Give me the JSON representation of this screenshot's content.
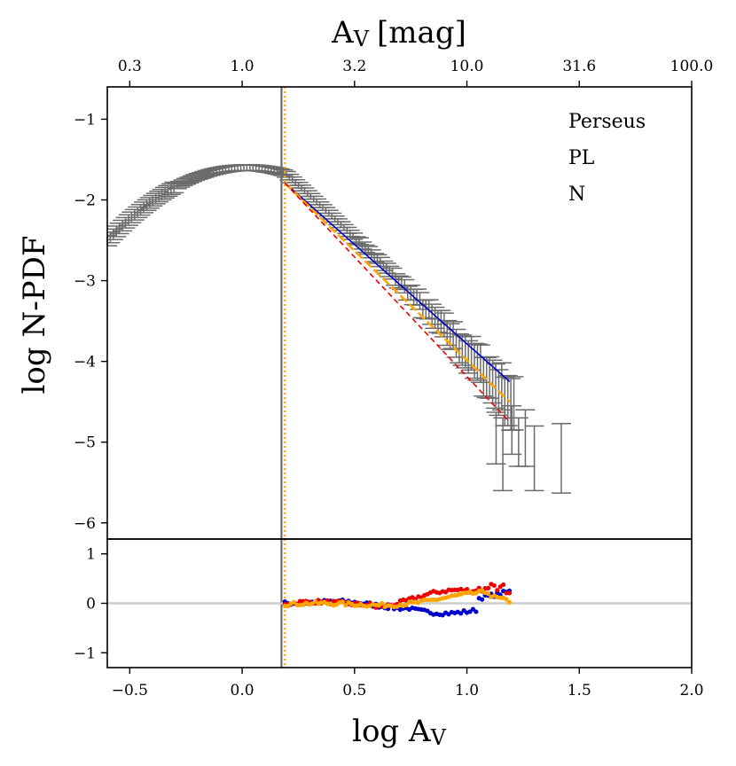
{
  "chart_data": {
    "type": "scatter",
    "title": "",
    "top_axis": {
      "label_main": "A",
      "label_sub": "V",
      "label_unit": "[mag]",
      "tick_labels": [
        "0.3",
        "1.0",
        "3.2",
        "10.0",
        "31.6",
        "100.0"
      ],
      "tick_positions_logAv": [
        -0.5,
        0.0,
        0.5,
        1.0,
        1.5,
        2.0
      ]
    },
    "x_axis": {
      "label_main": "log A",
      "label_sub": "V",
      "range": [
        -0.6,
        2.0
      ],
      "ticks": [
        -0.5,
        0.0,
        0.5,
        1.0,
        1.5,
        2.0
      ],
      "tick_labels": [
        "−0.5",
        "0.0",
        "0.5",
        "1.0",
        "1.5",
        "2.0"
      ]
    },
    "main_panel": {
      "ylabel": "log N-PDF",
      "ylim": [
        -6.2,
        -0.6
      ],
      "yticks": [
        -6,
        -5,
        -4,
        -3,
        -2,
        -1
      ],
      "ytick_labels": [
        "−6",
        "−5",
        "−4",
        "−3",
        "−2",
        "−1"
      ],
      "annotations": [
        "Perseus",
        "PL",
        "N"
      ],
      "vertical_lines": [
        {
          "x": 0.175,
          "color": "#6b6b6b",
          "style": "solid"
        },
        {
          "x": 0.19,
          "color": "#ffa500",
          "style": "dotted"
        }
      ],
      "pdf_errorbars": {
        "color": "#6b6b6b",
        "x_start": -0.6,
        "x_end_dense": 1.22,
        "peak_x": 0.02,
        "peak_y": -1.6,
        "sparse_points": [
          {
            "x": 1.13,
            "y": -4.95,
            "yerr": 0.32
          },
          {
            "x": 1.16,
            "y": -5.15,
            "yerr": 0.45
          },
          {
            "x": 1.2,
            "y": -4.85,
            "yerr": 0.3
          },
          {
            "x": 1.23,
            "y": -5.0,
            "yerr": 0.3
          },
          {
            "x": 1.26,
            "y": -4.95,
            "yerr": 0.35
          },
          {
            "x": 1.3,
            "y": -5.2,
            "yerr": 0.4
          },
          {
            "x": 1.42,
            "y": -5.2,
            "yerr": 0.43
          }
        ]
      },
      "fit_lines": [
        {
          "name": "fit-blue",
          "color": "#0000cc",
          "style": "solid",
          "x": [
            0.19,
            1.19
          ],
          "y": [
            -1.79,
            -4.25
          ]
        },
        {
          "name": "fit-orange",
          "color": "#ffa500",
          "style": "dashed",
          "x": [
            0.19,
            1.19
          ],
          "y": [
            -1.79,
            -4.5
          ]
        },
        {
          "name": "fit-red",
          "color": "#ee0000",
          "style": "dashed",
          "x": [
            0.19,
            1.19
          ],
          "y": [
            -1.79,
            -4.75
          ]
        }
      ]
    },
    "residual_panel": {
      "ylim": [
        -1.3,
        1.3
      ],
      "yticks": [
        -1,
        0,
        1
      ],
      "ytick_labels": [
        "−1",
        "0",
        "1"
      ],
      "zero_line_color": "#cccccc",
      "series": [
        {
          "name": "residual-blue",
          "color": "#0000cc"
        },
        {
          "name": "residual-red",
          "color": "#ee0000"
        },
        {
          "name": "residual-orange",
          "color": "#ffa500"
        }
      ]
    }
  }
}
